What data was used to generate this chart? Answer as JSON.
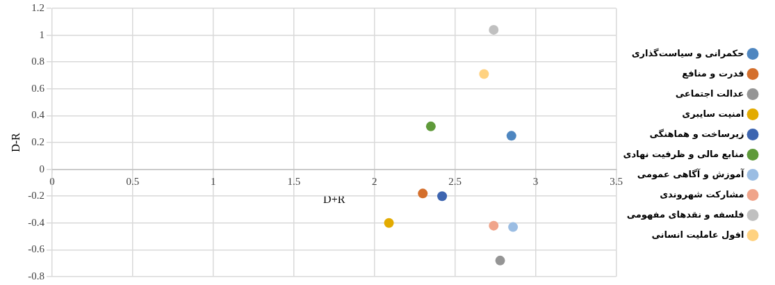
{
  "chart_data": {
    "type": "scatter",
    "xlabel": "D+R",
    "ylabel": "D-R",
    "xlim": [
      0,
      3.5
    ],
    "xticks": [
      0,
      0.5,
      1,
      1.5,
      2,
      2.5,
      3,
      3.5
    ],
    "ylim": [
      -0.8,
      1.2
    ],
    "yticks": [
      -0.8,
      -0.6,
      -0.4,
      -0.2,
      0,
      0.2,
      0.4,
      0.6,
      0.8,
      1,
      1.2
    ],
    "grid": true,
    "legend": "right",
    "marker": "circle",
    "series": [
      {
        "name": "حکمرانی و سیاست‌گذاری",
        "color": "#4e86c0",
        "x": [
          2.85
        ],
        "values": [
          0.25
        ]
      },
      {
        "name": "قدرت و منافع",
        "color": "#d46f2c",
        "x": [
          2.3
        ],
        "values": [
          -0.18
        ]
      },
      {
        "name": "عدالت اجتماعی",
        "color": "#959595",
        "x": [
          2.78
        ],
        "values": [
          -0.68
        ]
      },
      {
        "name": "امنیت سایبری",
        "color": "#e3ab00",
        "x": [
          2.09
        ],
        "values": [
          -0.4
        ]
      },
      {
        "name": "زیرساخت و هماهنگی",
        "color": "#3d65b0",
        "x": [
          2.42
        ],
        "values": [
          -0.2
        ]
      },
      {
        "name": "منابع مالی و ظرفیت نهادی",
        "color": "#5f9a3a",
        "x": [
          2.35
        ],
        "values": [
          0.32
        ]
      },
      {
        "name": "آموزش و آگاهی عمومی",
        "color": "#9bbde3",
        "x": [
          2.86
        ],
        "values": [
          -0.43
        ]
      },
      {
        "name": "مشارکت شهروندی",
        "color": "#f0a48a",
        "x": [
          2.74
        ],
        "values": [
          -0.42
        ]
      },
      {
        "name": "فلسفه و نقدهای مفهومی",
        "color": "#c0c0c0",
        "x": [
          2.74
        ],
        "values": [
          1.04
        ]
      },
      {
        "name": "افول عاملیت انسانی",
        "color": "#ffd280",
        "x": [
          2.68
        ],
        "values": [
          0.71
        ]
      }
    ]
  }
}
